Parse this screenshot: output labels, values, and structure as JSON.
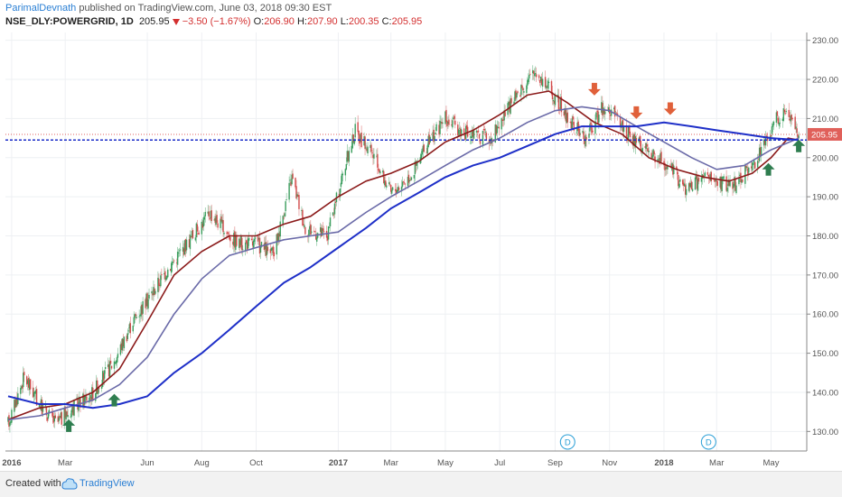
{
  "header": {
    "author": "ParimalDevnath",
    "published_text": " published on TradingView.com, June 03, 2018 09:30 EST",
    "symbol": "NSE_DLY:POWERGRID, 1D",
    "last": "205.95",
    "change_icon": "triangle-down-icon",
    "change": "−3.50 (−1.67%)",
    "o_label": "O:",
    "o_value": "206.90",
    "h_label": "H:",
    "h_value": "207.90",
    "l_label": "L:",
    "l_value": "200.35",
    "c_label": "C:",
    "c_value": "205.95"
  },
  "footer": {
    "created_with": "Created with",
    "brand": "TradingView",
    "logo_icon": "tradingview-logo-icon"
  },
  "chart_data": {
    "type": "line",
    "subtype": "candlestick-with-moving-averages",
    "ylim": [
      125,
      232
    ],
    "xlim": [
      "2015-12-25",
      "2018-06-10"
    ],
    "y_ticks": [
      "130.00",
      "140.00",
      "150.00",
      "160.00",
      "170.00",
      "180.00",
      "190.00",
      "200.00",
      "210.00",
      "220.00",
      "230.00"
    ],
    "x_ticks": [
      {
        "date": "2016-01-01",
        "label": "2016",
        "bold": true
      },
      {
        "date": "2016-03-01",
        "label": "Mar",
        "bold": false
      },
      {
        "date": "2016-06-01",
        "label": "Jun",
        "bold": false
      },
      {
        "date": "2016-08-01",
        "label": "Aug",
        "bold": false
      },
      {
        "date": "2016-10-01",
        "label": "Oct",
        "bold": false
      },
      {
        "date": "2017-01-01",
        "label": "2017",
        "bold": true
      },
      {
        "date": "2017-03-01",
        "label": "Mar",
        "bold": false
      },
      {
        "date": "2017-05-01",
        "label": "May",
        "bold": false
      },
      {
        "date": "2017-07-01",
        "label": "Jul",
        "bold": false
      },
      {
        "date": "2017-09-01",
        "label": "Sep",
        "bold": false
      },
      {
        "date": "2017-11-01",
        "label": "Nov",
        "bold": false
      },
      {
        "date": "2018-01-01",
        "label": "2018",
        "bold": true
      },
      {
        "date": "2018-03-01",
        "label": "Mar",
        "bold": false
      },
      {
        "date": "2018-05-01",
        "label": "May",
        "bold": false
      }
    ],
    "price_anchors": [
      [
        "2015-12-28",
        132
      ],
      [
        "2016-01-15",
        144
      ],
      [
        "2016-02-01",
        137
      ],
      [
        "2016-02-20",
        132
      ],
      [
        "2016-03-10",
        136
      ],
      [
        "2016-04-01",
        140
      ],
      [
        "2016-04-25",
        148
      ],
      [
        "2016-05-15",
        158
      ],
      [
        "2016-06-05",
        165
      ],
      [
        "2016-06-25",
        172
      ],
      [
        "2016-07-15",
        178
      ],
      [
        "2016-08-10",
        186
      ],
      [
        "2016-08-25",
        182
      ],
      [
        "2016-09-10",
        178
      ],
      [
        "2016-10-01",
        178
      ],
      [
        "2016-10-20",
        175
      ],
      [
        "2016-11-10",
        195
      ],
      [
        "2016-11-25",
        182
      ],
      [
        "2016-12-20",
        180
      ],
      [
        "2017-01-05",
        195
      ],
      [
        "2017-01-20",
        207
      ],
      [
        "2017-02-10",
        200
      ],
      [
        "2017-03-01",
        191
      ],
      [
        "2017-03-25",
        196
      ],
      [
        "2017-04-15",
        205
      ],
      [
        "2017-05-01",
        210
      ],
      [
        "2017-05-25",
        206
      ],
      [
        "2017-06-20",
        205
      ],
      [
        "2017-07-10",
        212
      ],
      [
        "2017-07-25",
        218
      ],
      [
        "2017-08-10",
        222
      ],
      [
        "2017-08-25",
        218
      ],
      [
        "2017-09-15",
        210
      ],
      [
        "2017-10-05",
        205
      ],
      [
        "2017-10-25",
        213
      ],
      [
        "2017-11-10",
        210
      ],
      [
        "2017-11-25",
        205
      ],
      [
        "2017-12-10",
        202
      ],
      [
        "2017-12-25",
        200
      ],
      [
        "2018-01-10",
        197
      ],
      [
        "2018-01-25",
        192
      ],
      [
        "2018-02-15",
        195
      ],
      [
        "2018-03-01",
        194
      ],
      [
        "2018-03-20",
        193
      ],
      [
        "2018-04-10",
        198
      ],
      [
        "2018-04-25",
        204
      ],
      [
        "2018-05-05",
        209
      ],
      [
        "2018-05-18",
        213
      ],
      [
        "2018-05-28",
        208
      ],
      [
        "2018-06-01",
        206
      ]
    ],
    "series": [
      {
        "type": "sma",
        "color": "#8b1a1a",
        "values": [
          [
            "2015-12-28",
            133
          ],
          [
            "2016-02-01",
            136
          ],
          [
            "2016-03-01",
            137
          ],
          [
            "2016-04-01",
            140
          ],
          [
            "2016-05-01",
            146
          ],
          [
            "2016-06-01",
            158
          ],
          [
            "2016-07-01",
            170
          ],
          [
            "2016-08-01",
            176
          ],
          [
            "2016-09-01",
            180
          ],
          [
            "2016-10-01",
            180
          ],
          [
            "2016-11-01",
            183
          ],
          [
            "2016-12-01",
            185
          ],
          [
            "2017-01-01",
            190
          ],
          [
            "2017-02-01",
            194
          ],
          [
            "2017-03-01",
            196
          ],
          [
            "2017-04-01",
            199
          ],
          [
            "2017-05-01",
            204
          ],
          [
            "2017-06-01",
            207
          ],
          [
            "2017-07-01",
            211
          ],
          [
            "2017-08-01",
            216
          ],
          [
            "2017-08-25",
            217
          ],
          [
            "2017-09-15",
            214
          ],
          [
            "2017-10-15",
            209
          ],
          [
            "2017-11-15",
            206
          ],
          [
            "2017-12-15",
            200
          ],
          [
            "2018-01-15",
            197
          ],
          [
            "2018-02-15",
            195
          ],
          [
            "2018-03-15",
            194
          ],
          [
            "2018-04-10",
            196
          ],
          [
            "2018-05-01",
            200
          ],
          [
            "2018-05-20",
            205
          ],
          [
            "2018-06-01",
            204.5
          ]
        ]
      },
      {
        "type": "sma",
        "color": "#6a6aa8",
        "values": [
          [
            "2015-12-28",
            133
          ],
          [
            "2016-02-01",
            134
          ],
          [
            "2016-03-01",
            136
          ],
          [
            "2016-04-01",
            138
          ],
          [
            "2016-05-01",
            142
          ],
          [
            "2016-06-01",
            149
          ],
          [
            "2016-07-01",
            160
          ],
          [
            "2016-08-01",
            169
          ],
          [
            "2016-09-01",
            175
          ],
          [
            "2016-10-01",
            177
          ],
          [
            "2016-11-01",
            179
          ],
          [
            "2016-12-01",
            180
          ],
          [
            "2017-01-01",
            181
          ],
          [
            "2017-02-01",
            186
          ],
          [
            "2017-03-01",
            190
          ],
          [
            "2017-04-01",
            194
          ],
          [
            "2017-05-01",
            198
          ],
          [
            "2017-06-01",
            202
          ],
          [
            "2017-07-01",
            205
          ],
          [
            "2017-08-01",
            209
          ],
          [
            "2017-09-01",
            212
          ],
          [
            "2017-10-01",
            213
          ],
          [
            "2017-11-01",
            212
          ],
          [
            "2017-12-01",
            208
          ],
          [
            "2018-01-01",
            204
          ],
          [
            "2018-02-01",
            200
          ],
          [
            "2018-03-01",
            197
          ],
          [
            "2018-04-01",
            198
          ],
          [
            "2018-05-01",
            202
          ],
          [
            "2018-06-01",
            205
          ]
        ]
      },
      {
        "type": "sma",
        "color": "#1e2fc8",
        "values": [
          [
            "2015-12-28",
            139
          ],
          [
            "2016-02-01",
            137
          ],
          [
            "2016-03-01",
            137
          ],
          [
            "2016-04-01",
            136
          ],
          [
            "2016-05-01",
            137
          ],
          [
            "2016-06-01",
            139
          ],
          [
            "2016-07-01",
            145
          ],
          [
            "2016-08-01",
            150
          ],
          [
            "2016-09-01",
            156
          ],
          [
            "2016-10-01",
            162
          ],
          [
            "2016-11-01",
            168
          ],
          [
            "2016-12-01",
            172
          ],
          [
            "2017-01-01",
            177
          ],
          [
            "2017-02-01",
            182
          ],
          [
            "2017-03-01",
            187
          ],
          [
            "2017-04-01",
            191
          ],
          [
            "2017-05-01",
            195
          ],
          [
            "2017-06-01",
            198
          ],
          [
            "2017-07-01",
            200
          ],
          [
            "2017-08-01",
            203
          ],
          [
            "2017-09-01",
            206
          ],
          [
            "2017-10-01",
            208
          ],
          [
            "2017-11-01",
            208
          ],
          [
            "2017-12-01",
            208
          ],
          [
            "2018-01-01",
            209
          ],
          [
            "2018-02-01",
            208
          ],
          [
            "2018-03-01",
            207
          ],
          [
            "2018-04-01",
            206
          ],
          [
            "2018-05-01",
            205
          ],
          [
            "2018-06-01",
            204.5
          ]
        ]
      }
    ],
    "hlines": [
      {
        "value": 205.95,
        "color": "#e06060",
        "style": "dotted"
      },
      {
        "value": 204.5,
        "color": "#1e2fc8",
        "style": "dashed"
      }
    ],
    "price_badge": {
      "value": 205.95,
      "label": "205.95",
      "color": "#e0605a"
    },
    "arrows": [
      {
        "date": "2016-03-05",
        "price": 131.5,
        "dir": "up",
        "color": "#2e7d4f"
      },
      {
        "date": "2016-04-25",
        "price": 138,
        "dir": "up",
        "color": "#2e7d4f"
      },
      {
        "date": "2017-10-15",
        "price": 217.5,
        "dir": "down",
        "color": "#e0603a"
      },
      {
        "date": "2017-12-01",
        "price": 211.5,
        "dir": "down",
        "color": "#e0603a"
      },
      {
        "date": "2018-01-08",
        "price": 212.5,
        "dir": "down",
        "color": "#e0603a"
      },
      {
        "date": "2018-04-28",
        "price": 197,
        "dir": "up",
        "color": "#2e7d4f"
      },
      {
        "date": "2018-06-01",
        "price": 203,
        "dir": "up",
        "color": "#2e7d4f"
      }
    ],
    "dividend_markers": [
      {
        "date": "2017-09-15",
        "label": "D"
      },
      {
        "date": "2018-02-20",
        "label": "D"
      }
    ],
    "colors": {
      "up": "#3a9d5d",
      "down": "#d24a4a",
      "grid": "#eef0f3",
      "axis": "#555555"
    }
  }
}
